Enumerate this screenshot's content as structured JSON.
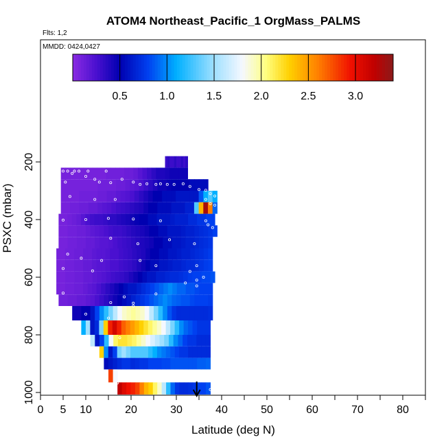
{
  "chart_data": {
    "type": "heatmap",
    "title": "ATOM4 Northeast_Pacific_1 OrgMass_PALMS",
    "subtitle_flights": "Flts: 1,2",
    "subtitle_dates": "MMDD: 0424,0427",
    "xlabel": "Latitude (deg N)",
    "ylabel": "PSXC (mbar)",
    "xlim": [
      0,
      85
    ],
    "ylim": [
      1000,
      0
    ],
    "x_ticks": [
      0,
      5,
      10,
      20,
      30,
      40,
      50,
      60,
      70,
      80
    ],
    "x_minor_ticks": [
      15,
      25,
      35,
      45,
      55,
      65,
      75,
      85
    ],
    "y_ticks": [
      200,
      400,
      600,
      800,
      1000
    ],
    "colorbar": {
      "range": [
        0,
        3.4
      ],
      "ticks": [
        0.5,
        1.0,
        1.5,
        2.0,
        2.5,
        3.0
      ],
      "tick_labels": [
        "0.5",
        "1.0",
        "1.5",
        "2.0",
        "2.5",
        "3.0"
      ],
      "stops": [
        {
          "v": 0.0,
          "c": "#8a2be2"
        },
        {
          "v": 0.25,
          "c": "#4a10d0"
        },
        {
          "v": 0.5,
          "c": "#0000b0"
        },
        {
          "v": 0.8,
          "c": "#0040f0"
        },
        {
          "v": 1.1,
          "c": "#00b0ff"
        },
        {
          "v": 1.5,
          "c": "#a0e0ff"
        },
        {
          "v": 1.8,
          "c": "#f5f8ff"
        },
        {
          "v": 2.05,
          "c": "#ffff80"
        },
        {
          "v": 2.3,
          "c": "#ffd000"
        },
        {
          "v": 2.6,
          "c": "#ff8000"
        },
        {
          "v": 2.95,
          "c": "#f01000"
        },
        {
          "v": 3.2,
          "c": "#c00000"
        },
        {
          "v": 3.4,
          "c": "#8b1a1a"
        }
      ]
    },
    "marker": {
      "type": "arrow-down",
      "x": 34.5,
      "y": 1000
    },
    "rows": [
      {
        "p_top": 180,
        "p_bot": 220,
        "x0": 27.5,
        "x1": 32.5,
        "values": [
          0.3,
          0.35,
          0.3,
          0.3,
          0.35,
          0.3,
          0.3,
          0.35,
          0.3,
          0.35
        ]
      },
      {
        "p_top": 220,
        "p_bot": 260,
        "x0": 4.5,
        "x1": 32.5,
        "values": [
          0.08,
          0.08,
          0.08,
          0.08,
          0.08,
          0.08,
          0.08,
          0.08,
          0.08,
          0.08,
          0.1,
          0.1,
          0.1,
          0.1,
          0.12,
          0.12,
          0.15,
          0.2,
          0.25,
          0.3,
          0.35,
          0.4,
          0.4,
          0.42,
          0.45,
          0.45,
          0.45,
          0.45
        ]
      },
      {
        "p_top": 260,
        "p_bot": 300,
        "x0": 4.5,
        "x1": 37,
        "values": [
          0.08,
          0.08,
          0.08,
          0.08,
          0.08,
          0.08,
          0.08,
          0.08,
          0.1,
          0.1,
          0.1,
          0.1,
          0.12,
          0.12,
          0.15,
          0.18,
          0.2,
          0.25,
          0.3,
          0.35,
          0.4,
          0.45,
          0.45,
          0.48,
          0.5,
          0.5,
          0.5,
          0.5,
          0.55,
          0.55,
          0.55,
          0.55
        ]
      },
      {
        "p_top": 300,
        "p_bot": 340,
        "x0": 4.5,
        "x1": 39,
        "values": [
          0.08,
          0.08,
          0.08,
          0.08,
          0.1,
          0.1,
          0.1,
          0.1,
          0.12,
          0.12,
          0.15,
          0.15,
          0.18,
          0.2,
          0.22,
          0.25,
          0.3,
          0.35,
          0.4,
          0.45,
          0.5,
          0.5,
          0.55,
          0.55,
          0.55,
          0.6,
          0.6,
          0.6,
          0.6,
          0.6,
          0.85,
          1.1,
          1.3,
          1.1
        ]
      },
      {
        "p_top": 340,
        "p_bot": 380,
        "x0": 4.5,
        "x1": 39,
        "values": [
          0.08,
          0.08,
          0.1,
          0.1,
          0.12,
          0.12,
          0.15,
          0.15,
          0.18,
          0.2,
          0.22,
          0.25,
          0.28,
          0.3,
          0.32,
          0.35,
          0.38,
          0.4,
          0.45,
          0.5,
          0.5,
          0.55,
          0.55,
          0.55,
          0.6,
          0.6,
          0.6,
          0.65,
          0.65,
          1.3,
          2.4,
          3.3,
          2.6,
          0.9
        ]
      },
      {
        "p_top": 380,
        "p_bot": 420,
        "x0": 4,
        "x1": 38.5,
        "values": [
          0.08,
          0.08,
          0.1,
          0.12,
          0.15,
          0.2,
          0.25,
          0.28,
          0.3,
          0.3,
          0.32,
          0.35,
          0.35,
          0.38,
          0.4,
          0.42,
          0.45,
          0.48,
          0.5,
          0.5,
          0.55,
          0.55,
          0.6,
          0.6,
          0.6,
          0.62,
          0.65,
          0.65,
          0.65,
          0.7,
          0.7,
          0.75,
          0.75,
          0.8,
          0.8
        ]
      },
      {
        "p_top": 420,
        "p_bot": 460,
        "x0": 4,
        "x1": 39,
        "values": [
          0.08,
          0.08,
          0.1,
          0.1,
          0.12,
          0.12,
          0.15,
          0.18,
          0.2,
          0.22,
          0.25,
          0.28,
          0.3,
          0.3,
          0.32,
          0.35,
          0.38,
          0.4,
          0.42,
          0.45,
          0.5,
          0.5,
          0.55,
          0.55,
          0.6,
          0.6,
          0.6,
          0.62,
          0.65,
          0.65,
          0.68,
          0.7,
          0.72,
          0.75,
          0.8
        ]
      },
      {
        "p_top": 460,
        "p_bot": 500,
        "x0": 4,
        "x1": 38,
        "values": [
          0.08,
          0.08,
          0.1,
          0.1,
          0.12,
          0.12,
          0.15,
          0.15,
          0.18,
          0.2,
          0.2,
          0.22,
          0.25,
          0.28,
          0.3,
          0.32,
          0.35,
          0.38,
          0.4,
          0.42,
          0.45,
          0.5,
          0.5,
          0.55,
          0.55,
          0.6,
          0.6,
          0.62,
          0.65,
          0.65,
          0.68,
          0.7,
          0.72,
          0.75
        ]
      },
      {
        "p_top": 500,
        "p_bot": 540,
        "x0": 3.5,
        "x1": 38,
        "values": [
          0.08,
          0.08,
          0.1,
          0.1,
          0.12,
          0.12,
          0.15,
          0.15,
          0.18,
          0.2,
          0.2,
          0.22,
          0.25,
          0.25,
          0.28,
          0.3,
          0.32,
          0.35,
          0.38,
          0.4,
          0.45,
          0.5,
          0.5,
          0.55,
          0.55,
          0.6,
          0.6,
          0.62,
          0.65,
          0.65,
          0.68,
          0.7,
          0.72,
          0.75,
          0.78
        ]
      },
      {
        "p_top": 540,
        "p_bot": 580,
        "x0": 3.5,
        "x1": 38,
        "values": [
          0.08,
          0.08,
          0.1,
          0.1,
          0.12,
          0.12,
          0.15,
          0.15,
          0.18,
          0.2,
          0.2,
          0.22,
          0.25,
          0.25,
          0.28,
          0.3,
          0.32,
          0.35,
          0.4,
          0.45,
          0.5,
          0.55,
          0.55,
          0.6,
          0.6,
          0.62,
          0.65,
          0.65,
          0.68,
          0.7,
          0.7,
          0.72,
          0.75,
          0.78,
          0.8
        ]
      },
      {
        "p_top": 580,
        "p_bot": 620,
        "x0": 3.5,
        "x1": 38.5,
        "values": [
          0.08,
          0.08,
          0.1,
          0.1,
          0.12,
          0.12,
          0.15,
          0.15,
          0.18,
          0.2,
          0.22,
          0.25,
          0.28,
          0.3,
          0.32,
          0.35,
          0.4,
          0.45,
          0.5,
          0.55,
          0.6,
          0.6,
          0.65,
          0.65,
          0.68,
          0.7,
          0.7,
          0.72,
          0.75,
          0.78,
          0.8,
          0.8,
          0.82,
          0.82,
          0.85
        ]
      },
      {
        "p_top": 620,
        "p_bot": 660,
        "x0": 3.5,
        "x1": 38,
        "values": [
          0.08,
          0.08,
          0.1,
          0.1,
          0.12,
          0.12,
          0.15,
          0.18,
          0.2,
          0.25,
          0.3,
          0.35,
          0.4,
          0.45,
          0.5,
          0.55,
          0.6,
          0.6,
          0.65,
          0.7,
          0.75,
          0.8,
          0.85,
          0.9,
          0.95,
          1.0,
          0.95,
          0.9,
          0.9,
          0.85,
          0.85,
          0.82,
          0.8,
          0.8,
          0.8
        ]
      },
      {
        "p_top": 660,
        "p_bot": 700,
        "x0": 4,
        "x1": 38,
        "values": [
          0.1,
          0.1,
          0.12,
          0.12,
          0.15,
          0.15,
          0.18,
          0.2,
          0.25,
          0.3,
          0.35,
          0.4,
          0.45,
          0.5,
          0.55,
          0.6,
          0.65,
          0.7,
          0.75,
          0.8,
          0.85,
          0.9,
          0.95,
          1.0,
          0.95,
          0.9,
          0.88,
          0.85,
          0.85,
          0.82,
          0.8,
          0.8,
          0.8,
          0.78
        ]
      },
      {
        "p_top": 700,
        "p_bot": 750,
        "x0": 7,
        "x1": 38,
        "values": [
          0.45,
          0.45,
          0.5,
          0.5,
          0.6,
          0.8,
          1.0,
          1.2,
          1.4,
          1.6,
          1.8,
          1.9,
          1.95,
          2.0,
          1.95,
          1.9,
          1.8,
          1.6,
          1.4,
          1.2,
          1.0,
          0.85,
          0.75,
          0.7,
          0.7,
          0.7,
          0.7,
          0.7,
          0.7,
          0.7,
          0.72
        ]
      },
      {
        "p_top": 750,
        "p_bot": 800,
        "x0": 9,
        "x1": 37.5,
        "values": [
          1.1,
          1.5,
          0.6,
          0.7,
          1.4,
          2.3,
          2.9,
          3.1,
          2.9,
          2.7,
          2.6,
          2.5,
          2.4,
          2.3,
          2.2,
          2.1,
          2.0,
          1.9,
          1.8,
          1.6,
          1.4,
          1.2,
          1.0,
          0.9,
          0.85,
          0.8,
          0.75,
          0.75,
          0.75
        ]
      },
      {
        "p_top": 800,
        "p_bot": 840,
        "x0": 11,
        "x1": 37.5,
        "values": [
          1.6,
          0.6,
          0.8,
          1.2,
          1.8,
          2.1,
          2.2,
          2.2,
          2.15,
          2.1,
          2.0,
          1.9,
          1.8,
          1.7,
          1.6,
          1.5,
          1.4,
          1.2,
          1.0,
          0.9,
          0.8,
          0.75,
          0.75,
          0.7,
          0.7,
          0.7
        ]
      },
      {
        "p_top": 840,
        "p_bot": 880,
        "x0": 13,
        "x1": 37.5,
        "values": [
          2.3,
          1.0,
          0.6,
          0.8,
          1.4,
          1.5,
          1.4,
          1.3,
          1.3,
          1.3,
          1.3,
          1.2,
          1.1,
          1.0,
          0.95,
          0.9,
          0.85,
          0.8,
          0.75,
          0.75,
          0.7,
          0.7,
          0.7,
          0.7,
          0.7
        ]
      },
      {
        "p_top": 880,
        "p_bot": 920,
        "x0": 14,
        "x1": 37.5,
        "values": [
          0.55,
          0.6,
          0.65,
          0.7,
          0.75,
          0.75,
          0.7,
          0.72,
          0.75,
          0.75,
          0.8,
          0.8,
          0.8,
          0.82,
          0.82,
          0.85,
          0.85,
          0.85,
          0.85,
          0.85,
          0.85,
          0.88,
          0.88,
          0.9
        ]
      },
      {
        "p_top": 920,
        "p_bot": 965,
        "x0": 15,
        "x1": 17,
        "values": [
          2.8,
          1.8
        ]
      },
      {
        "p_top": 965,
        "p_bot": 1010,
        "x0": 17,
        "x1": 37.5,
        "values": [
          3.2,
          3.05,
          2.95,
          2.9,
          2.8,
          2.6,
          2.4,
          2.3,
          2.1,
          1.9,
          1.6,
          1.2,
          0.9,
          0.75,
          0.7,
          0.7,
          0.72,
          0.75,
          0.8,
          0.8,
          0.85
        ]
      }
    ],
    "sample_points": [
      [
        5,
        232
      ],
      [
        6,
        232
      ],
      [
        7.5,
        232
      ],
      [
        8.5,
        232
      ],
      [
        10.5,
        232
      ],
      [
        14.5,
        232
      ],
      [
        7,
        240
      ],
      [
        10,
        250
      ],
      [
        12,
        260
      ],
      [
        18,
        260
      ],
      [
        5.5,
        270
      ],
      [
        13,
        270
      ],
      [
        15.5,
        272
      ],
      [
        20.5,
        270
      ],
      [
        22,
        278
      ],
      [
        23.5,
        276
      ],
      [
        25.5,
        278
      ],
      [
        26.5,
        276
      ],
      [
        28,
        278
      ],
      [
        29.5,
        278
      ],
      [
        31.5,
        276
      ],
      [
        33,
        285
      ],
      [
        35,
        296
      ],
      [
        36.5,
        298
      ],
      [
        37.5,
        310
      ],
      [
        38.5,
        318
      ],
      [
        6.5,
        320
      ],
      [
        12,
        330
      ],
      [
        16.5,
        330
      ],
      [
        36.5,
        330
      ],
      [
        37.5,
        345
      ],
      [
        38.5,
        350
      ],
      [
        5,
        402
      ],
      [
        10,
        400
      ],
      [
        15,
        396
      ],
      [
        20.5,
        398
      ],
      [
        26.5,
        404
      ],
      [
        36.5,
        404
      ],
      [
        37,
        418
      ],
      [
        38,
        428
      ],
      [
        15.5,
        465
      ],
      [
        21.5,
        484
      ],
      [
        28.5,
        470
      ],
      [
        34,
        484
      ],
      [
        6,
        520
      ],
      [
        9,
        534
      ],
      [
        13.5,
        542
      ],
      [
        22,
        542
      ],
      [
        25.5,
        560
      ],
      [
        34.5,
        560
      ],
      [
        5,
        570
      ],
      [
        11.5,
        578
      ],
      [
        33,
        580
      ],
      [
        36,
        600
      ],
      [
        34.5,
        610
      ],
      [
        32,
        620
      ],
      [
        34.5,
        630
      ],
      [
        5,
        655
      ],
      [
        18.5,
        668
      ],
      [
        25.5,
        658
      ],
      [
        20.5,
        690
      ],
      [
        15.5,
        688
      ],
      [
        20.5,
        700
      ],
      [
        10,
        728
      ],
      [
        15,
        742
      ],
      [
        17.5,
        810
      ],
      [
        17,
        967
      ],
      [
        37.5,
        990
      ]
    ]
  }
}
